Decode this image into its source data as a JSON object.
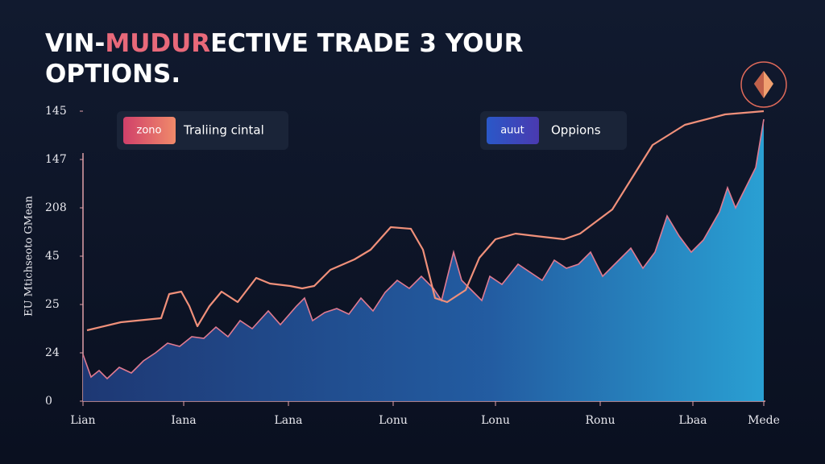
{
  "title_parts": [
    "VIN-",
    "MUDUR",
    "ECTIVE TRADE 3 YOUR",
    "OPTIONS."
  ],
  "chart_data": {
    "type": "line-area",
    "y_label": "EU Mtichseoto GMean",
    "xlim": [
      0,
      847
    ],
    "ylim": [
      0,
      360
    ],
    "xticks": [
      {
        "value": 0,
        "label": "Lian"
      },
      {
        "value": 125,
        "label": "Iana"
      },
      {
        "value": 255,
        "label": "Lana"
      },
      {
        "value": 385,
        "label": "Lonu"
      },
      {
        "value": 512,
        "label": "Lonu"
      },
      {
        "value": 642,
        "label": "Ronu"
      },
      {
        "value": 757,
        "label": "Lbaa"
      },
      {
        "value": 845,
        "label": "Mede"
      }
    ],
    "yticks": [
      0,
      {
        "value": 60,
        "label": "24"
      },
      {
        "value": 120,
        "label": "25"
      },
      {
        "value": 180,
        "label": "45"
      },
      {
        "value": 240,
        "label": "208"
      },
      {
        "value": 300,
        "label": "147"
      },
      {
        "value": 360,
        "label": "145"
      }
    ],
    "series": [
      {
        "name": "Traliing cintal",
        "badge": "zono",
        "kind": "line",
        "color": "#f0907a",
        "x": [
          5,
          47,
          97,
          107,
          122,
          132,
          142,
          157,
          172,
          192,
          215,
          232,
          257,
          272,
          287,
          307,
          337,
          357,
          382,
          407,
          422,
          437,
          452,
          475,
          492,
          512,
          537,
          562,
          597,
          617,
          657,
          682,
          707,
          747,
          797,
          845
        ],
        "values": [
          88,
          98,
          103,
          133,
          136,
          118,
          93,
          118,
          136,
          123,
          153,
          146,
          143,
          140,
          143,
          163,
          176,
          188,
          216,
          214,
          188,
          128,
          123,
          138,
          178,
          201,
          208,
          205,
          201,
          208,
          238,
          278,
          318,
          343,
          356,
          360
        ]
      },
      {
        "name": "Oppions",
        "badge": "auut",
        "kind": "area",
        "color": "#e07a90",
        "x": [
          0,
          10,
          20,
          30,
          45,
          60,
          75,
          90,
          105,
          120,
          135,
          150,
          165,
          180,
          195,
          210,
          230,
          245,
          265,
          275,
          285,
          300,
          315,
          330,
          345,
          360,
          375,
          390,
          405,
          420,
          435,
          445,
          460,
          470,
          480,
          495,
          505,
          520,
          540,
          555,
          570,
          585,
          600,
          615,
          630,
          645,
          660,
          680,
          695,
          710,
          725,
          740,
          755,
          770,
          790,
          800,
          810,
          825,
          835,
          845
        ],
        "values": [
          58,
          30,
          38,
          28,
          42,
          35,
          50,
          60,
          72,
          68,
          80,
          78,
          92,
          80,
          100,
          90,
          112,
          95,
          118,
          128,
          100,
          110,
          115,
          108,
          128,
          112,
          135,
          150,
          140,
          155,
          140,
          125,
          185,
          150,
          140,
          125,
          155,
          145,
          170,
          160,
          150,
          175,
          165,
          170,
          185,
          155,
          170,
          190,
          165,
          185,
          230,
          205,
          185,
          200,
          235,
          265,
          240,
          270,
          290,
          350
        ]
      }
    ]
  }
}
